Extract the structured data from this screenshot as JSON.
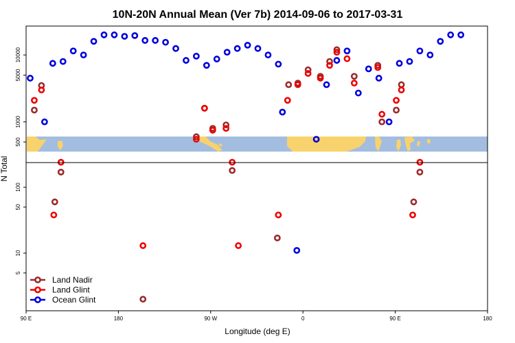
{
  "chart_data": {
    "type": "scatter",
    "title": "10N-20N Annual Mean (Ver 7b)   2014-09-06 to 2017-03-31",
    "xlabel": "Longitude (deg E)",
    "ylabel": "N Total",
    "xticks": [
      {
        "value": 90,
        "label": "90 E"
      },
      {
        "value": 180,
        "label": "180"
      },
      {
        "value": 270,
        "label": "90 W"
      },
      {
        "value": 360,
        "label": "0"
      },
      {
        "value": 450,
        "label": "90 E"
      },
      {
        "value": 540,
        "label": "180"
      }
    ],
    "xlim": [
      90,
      540
    ],
    "yscale": "log",
    "yticks_upper": [
      {
        "value": 500,
        "label": "500"
      },
      {
        "value": 1000,
        "label": "1000"
      },
      {
        "value": 5000,
        "label": "5000"
      },
      {
        "value": 10000,
        "label": "10000"
      }
    ],
    "yticks_lower": [
      {
        "value": 5,
        "label": "5"
      },
      {
        "value": 10,
        "label": "10"
      },
      {
        "value": 50,
        "label": "50"
      },
      {
        "value": 100,
        "label": "100"
      }
    ],
    "legend_position": "bottom-left",
    "colors": {
      "land_nadir": "#9b2a2a",
      "land_glint": "#ee0000",
      "ocean_glint": "#0000dd",
      "ocean_band": "#a3bde0",
      "land_band": "#f8d26c"
    },
    "series": [
      {
        "name": "Land Nadir",
        "color": "#9b2a2a",
        "points": [
          {
            "x": 98,
            "y": 1500
          },
          {
            "x": 105,
            "y": 3500
          },
          {
            "x": 118,
            "y": 60
          },
          {
            "x": 124,
            "y": 170
          },
          {
            "x": 204,
            "y": 2
          },
          {
            "x": 256,
            "y": 600
          },
          {
            "x": 264,
            "y": 1600
          },
          {
            "x": 272,
            "y": 800
          },
          {
            "x": 285,
            "y": 900
          },
          {
            "x": 291,
            "y": 180
          },
          {
            "x": 335,
            "y": 17
          },
          {
            "x": 346,
            "y": 3600
          },
          {
            "x": 355,
            "y": 3800
          },
          {
            "x": 365,
            "y": 6000
          },
          {
            "x": 377,
            "y": 4800
          },
          {
            "x": 386,
            "y": 8000
          },
          {
            "x": 393,
            "y": 12000
          },
          {
            "x": 410,
            "y": 4800
          },
          {
            "x": 433,
            "y": 7000
          },
          {
            "x": 437,
            "y": 1000
          },
          {
            "x": 451,
            "y": 1500
          },
          {
            "x": 456,
            "y": 3600
          },
          {
            "x": 468,
            "y": 60
          },
          {
            "x": 474,
            "y": 170
          }
        ]
      },
      {
        "name": "Land Glint",
        "color": "#ee0000",
        "points": [
          {
            "x": 98,
            "y": 2100
          },
          {
            "x": 105,
            "y": 3000
          },
          {
            "x": 117,
            "y": 38
          },
          {
            "x": 124,
            "y": 240
          },
          {
            "x": 204,
            "y": 13
          },
          {
            "x": 256,
            "y": 550
          },
          {
            "x": 264,
            "y": 1600
          },
          {
            "x": 272,
            "y": 750
          },
          {
            "x": 285,
            "y": 800
          },
          {
            "x": 291,
            "y": 240
          },
          {
            "x": 297,
            "y": 13
          },
          {
            "x": 336,
            "y": 38
          },
          {
            "x": 345,
            "y": 2100
          },
          {
            "x": 355,
            "y": 3600
          },
          {
            "x": 365,
            "y": 5300
          },
          {
            "x": 377,
            "y": 4500
          },
          {
            "x": 386,
            "y": 7000
          },
          {
            "x": 393,
            "y": 11000
          },
          {
            "x": 403,
            "y": 8800
          },
          {
            "x": 410,
            "y": 3800
          },
          {
            "x": 433,
            "y": 6500
          },
          {
            "x": 437,
            "y": 1300
          },
          {
            "x": 451,
            "y": 2100
          },
          {
            "x": 456,
            "y": 3000
          },
          {
            "x": 467,
            "y": 38
          },
          {
            "x": 474,
            "y": 240
          }
        ]
      },
      {
        "name": "Ocean Glint",
        "color": "#0000dd",
        "points": [
          {
            "x": 94,
            "y": 4500
          },
          {
            "x": 108,
            "y": 1000
          },
          {
            "x": 116,
            "y": 7500
          },
          {
            "x": 126,
            "y": 8000
          },
          {
            "x": 136,
            "y": 11500
          },
          {
            "x": 146,
            "y": 10000
          },
          {
            "x": 156,
            "y": 16000
          },
          {
            "x": 166,
            "y": 20000
          },
          {
            "x": 176,
            "y": 20000
          },
          {
            "x": 186,
            "y": 19000
          },
          {
            "x": 196,
            "y": 19500
          },
          {
            "x": 206,
            "y": 16500
          },
          {
            "x": 216,
            "y": 16500
          },
          {
            "x": 226,
            "y": 15500
          },
          {
            "x": 236,
            "y": 12500
          },
          {
            "x": 246,
            "y": 8300
          },
          {
            "x": 256,
            "y": 9600
          },
          {
            "x": 266,
            "y": 7000
          },
          {
            "x": 276,
            "y": 8700
          },
          {
            "x": 286,
            "y": 11000
          },
          {
            "x": 296,
            "y": 12500
          },
          {
            "x": 306,
            "y": 14000
          },
          {
            "x": 316,
            "y": 12500
          },
          {
            "x": 326,
            "y": 10000
          },
          {
            "x": 336,
            "y": 7300
          },
          {
            "x": 340,
            "y": 1400
          },
          {
            "x": 354,
            "y": 11
          },
          {
            "x": 373,
            "y": 550
          },
          {
            "x": 383,
            "y": 3600
          },
          {
            "x": 393,
            "y": 8300
          },
          {
            "x": 403,
            "y": 11500
          },
          {
            "x": 414,
            "y": 2700
          },
          {
            "x": 424,
            "y": 6200
          },
          {
            "x": 434,
            "y": 4500
          },
          {
            "x": 444,
            "y": 1000
          },
          {
            "x": 454,
            "y": 7500
          },
          {
            "x": 464,
            "y": 8000
          },
          {
            "x": 474,
            "y": 11500
          },
          {
            "x": 484,
            "y": 10000
          },
          {
            "x": 494,
            "y": 16000
          },
          {
            "x": 504,
            "y": 20000
          },
          {
            "x": 514,
            "y": 20000
          }
        ]
      }
    ]
  }
}
